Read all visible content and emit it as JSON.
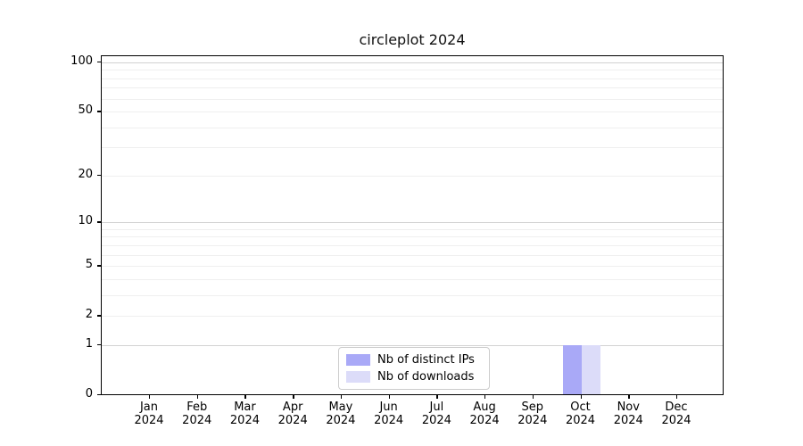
{
  "chart_data": {
    "type": "bar",
    "title": "circleplot 2024",
    "x_year": "2024",
    "categories": [
      "Jan",
      "Feb",
      "Mar",
      "Apr",
      "May",
      "Jun",
      "Jul",
      "Aug",
      "Sep",
      "Oct",
      "Nov",
      "Dec"
    ],
    "series": [
      {
        "name": "Nb of distinct IPs",
        "color": "#a9a9f7",
        "values": [
          0,
          0,
          0,
          0,
          0,
          0,
          0,
          0,
          0,
          1,
          0,
          0
        ]
      },
      {
        "name": "Nb of downloads",
        "color": "#dcdcf9",
        "values": [
          0,
          0,
          0,
          0,
          0,
          0,
          0,
          0,
          0,
          1,
          0,
          0
        ]
      }
    ],
    "y_axis": {
      "scale": "log10(1+y)",
      "range": [
        0,
        100
      ],
      "ticks": [
        0,
        1,
        2,
        5,
        10,
        20,
        50,
        100
      ],
      "major_gridlines": [
        1,
        10,
        100
      ],
      "minor_gridlines": [
        2,
        3,
        4,
        5,
        6,
        7,
        8,
        9,
        20,
        30,
        40,
        50,
        60,
        70,
        80,
        90
      ]
    },
    "legend": {
      "position": "lower center"
    }
  },
  "colors": {
    "major_grid": "#d2d2d2",
    "minor_grid": "#efefef",
    "axis": "#000000",
    "legend_border": "#cccccc",
    "background": "#ffffff"
  }
}
